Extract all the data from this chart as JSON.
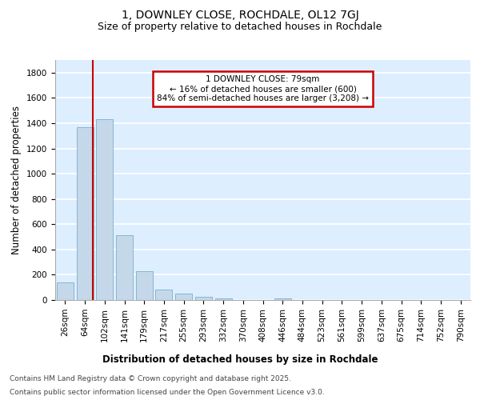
{
  "title": "1, DOWNLEY CLOSE, ROCHDALE, OL12 7GJ",
  "subtitle": "Size of property relative to detached houses in Rochdale",
  "xlabel": "Distribution of detached houses by size in Rochdale",
  "ylabel": "Number of detached properties",
  "categories": [
    "26sqm",
    "64sqm",
    "102sqm",
    "141sqm",
    "179sqm",
    "217sqm",
    "255sqm",
    "293sqm",
    "332sqm",
    "370sqm",
    "408sqm",
    "446sqm",
    "484sqm",
    "523sqm",
    "561sqm",
    "599sqm",
    "637sqm",
    "675sqm",
    "714sqm",
    "752sqm",
    "790sqm"
  ],
  "values": [
    140,
    1370,
    1430,
    510,
    225,
    85,
    50,
    25,
    15,
    0,
    0,
    15,
    0,
    0,
    0,
    0,
    0,
    0,
    0,
    0,
    0
  ],
  "bar_color": "#c5d8ea",
  "bar_edge_color": "#7aaec8",
  "background_color": "#ddeeff",
  "grid_color": "#ffffff",
  "property_line_x": 1.42,
  "annotation_line1": "1 DOWNLEY CLOSE: 79sqm",
  "annotation_line2": "← 16% of detached houses are smaller (600)",
  "annotation_line3": "84% of semi-detached houses are larger (3,208) →",
  "annotation_box_color": "#ffffff",
  "annotation_box_edge": "#cc0000",
  "property_line_color": "#cc0000",
  "ylim": [
    0,
    1900
  ],
  "yticks": [
    0,
    200,
    400,
    600,
    800,
    1000,
    1200,
    1400,
    1600,
    1800
  ],
  "footer_line1": "Contains HM Land Registry data © Crown copyright and database right 2025.",
  "footer_line2": "Contains public sector information licensed under the Open Government Licence v3.0.",
  "title_fontsize": 10,
  "subtitle_fontsize": 9,
  "label_fontsize": 8.5,
  "tick_fontsize": 7.5,
  "annotation_fontsize": 7.5,
  "footer_fontsize": 6.5
}
